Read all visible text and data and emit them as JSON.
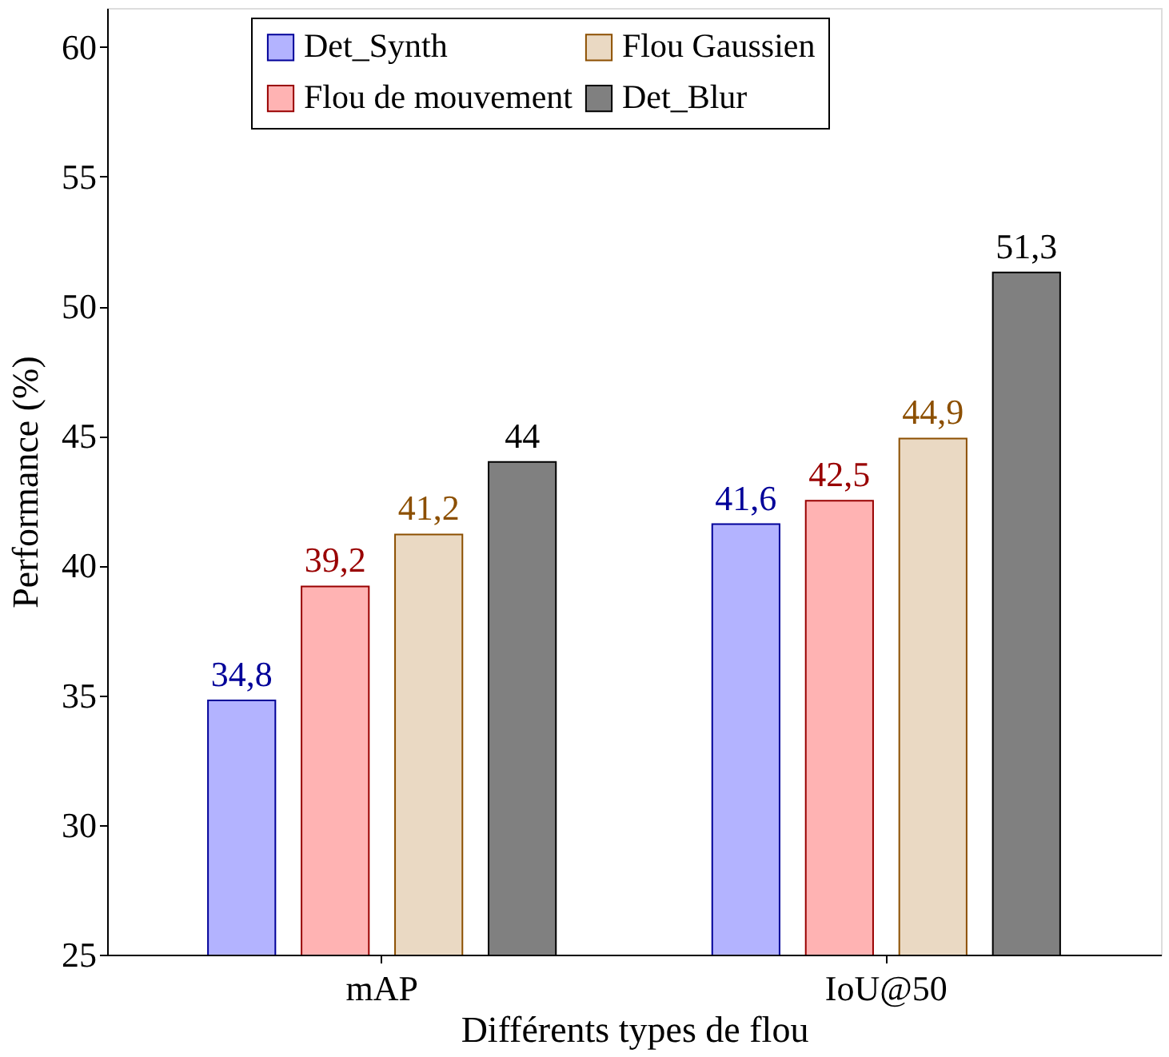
{
  "chart_data": {
    "type": "bar",
    "xlabel": "Différents types de flou",
    "ylabel": "Performance (%)",
    "categories": [
      "mAP",
      "IoU@50"
    ],
    "series": [
      {
        "name": "Det_Synth",
        "color": "#b3b3ff",
        "values": [
          34.8,
          41.6
        ],
        "value_labels": [
          "34,8",
          "41,6"
        ]
      },
      {
        "name": "Flou de mouvement",
        "color": "#ffb3b3",
        "values": [
          39.2,
          42.5
        ],
        "value_labels": [
          "39,2",
          "42,5"
        ]
      },
      {
        "name": "Flou Gaussien",
        "color": "#ead9c3",
        "values": [
          41.2,
          44.9
        ],
        "value_labels": [
          "41,2",
          "44,9"
        ]
      },
      {
        "name": "Det_Blur",
        "color": "#808080",
        "values": [
          44,
          51.3
        ],
        "value_labels": [
          "44",
          "51,3"
        ]
      }
    ],
    "ylim": [
      25,
      61.5
    ],
    "yticks": [
      25,
      30,
      35,
      40,
      45,
      50,
      55,
      60
    ],
    "grid": false,
    "legend": "top"
  }
}
